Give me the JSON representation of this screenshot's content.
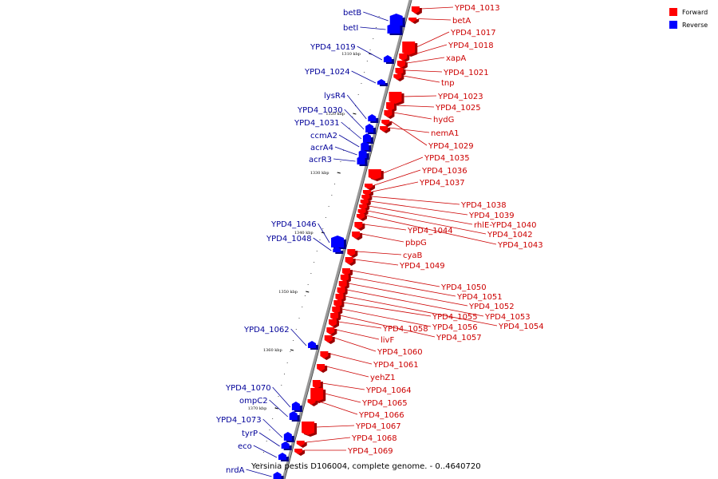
{
  "caption": "Yersinia pestis D106004, complete genome. - 0..4640720",
  "legend": [
    {
      "label": "Forward",
      "color": "#ff0000"
    },
    {
      "label": "Reverse",
      "color": "#0000ff"
    }
  ],
  "colors": {
    "forward_fill": "#ff0000",
    "forward_shadow": "#990000",
    "forward_line": "#cc0000",
    "reverse_fill": "#0000ff",
    "reverse_shadow": "#000088",
    "reverse_line": "#000099",
    "backbone": "#999999"
  },
  "ticks": [
    "1310 kbp",
    "1320 kbp",
    "1330 kbp",
    "1340 kbp",
    "1350 kbp",
    "1360 kbp",
    "1370 kbp"
  ],
  "forward_genes": [
    "YPD4_1013",
    "betA",
    "YPD4_1017",
    "YPD4_1018",
    "xapA",
    "YPD4_1021",
    "tnp",
    "YPD4_1023",
    "YPD4_1025",
    "hydG",
    "nemA1",
    "YPD4_1029",
    "YPD4_1035",
    "YPD4_1036",
    "YPD4_1037",
    "YPD4_1038",
    "YPD4_1039",
    "rhlE-YPD4_1040",
    "YPD4_1042",
    "YPD4_1043",
    "YPD4_1044",
    "pbpG",
    "cyaB",
    "YPD4_1049",
    "YPD4_1050",
    "YPD4_1051",
    "YPD4_1052",
    "YPD4_1053",
    "YPD4_1054",
    "YPD4_1055",
    "YPD4_1056",
    "YPD4_1057",
    "YPD4_1058",
    "livF",
    "YPD4_1060",
    "YPD4_1061",
    "yehZ1",
    "YPD4_1064",
    "YPD4_1065",
    "YPD4_1066",
    "YPD4_1067",
    "YPD4_1068",
    "YPD4_1069"
  ],
  "reverse_genes": [
    "betB",
    "betI",
    "YPD4_1019",
    "YPD4_1024",
    "lysR4",
    "YPD4_1030",
    "YPD4_1031",
    "ccmA2",
    "acrA4",
    "acrR3",
    "YPD4_1046",
    "YPD4_1048",
    "YPD4_1062",
    "YPD4_1070",
    "ompC2",
    "YPD4_1073",
    "tyrP",
    "eco",
    "nrdA"
  ]
}
